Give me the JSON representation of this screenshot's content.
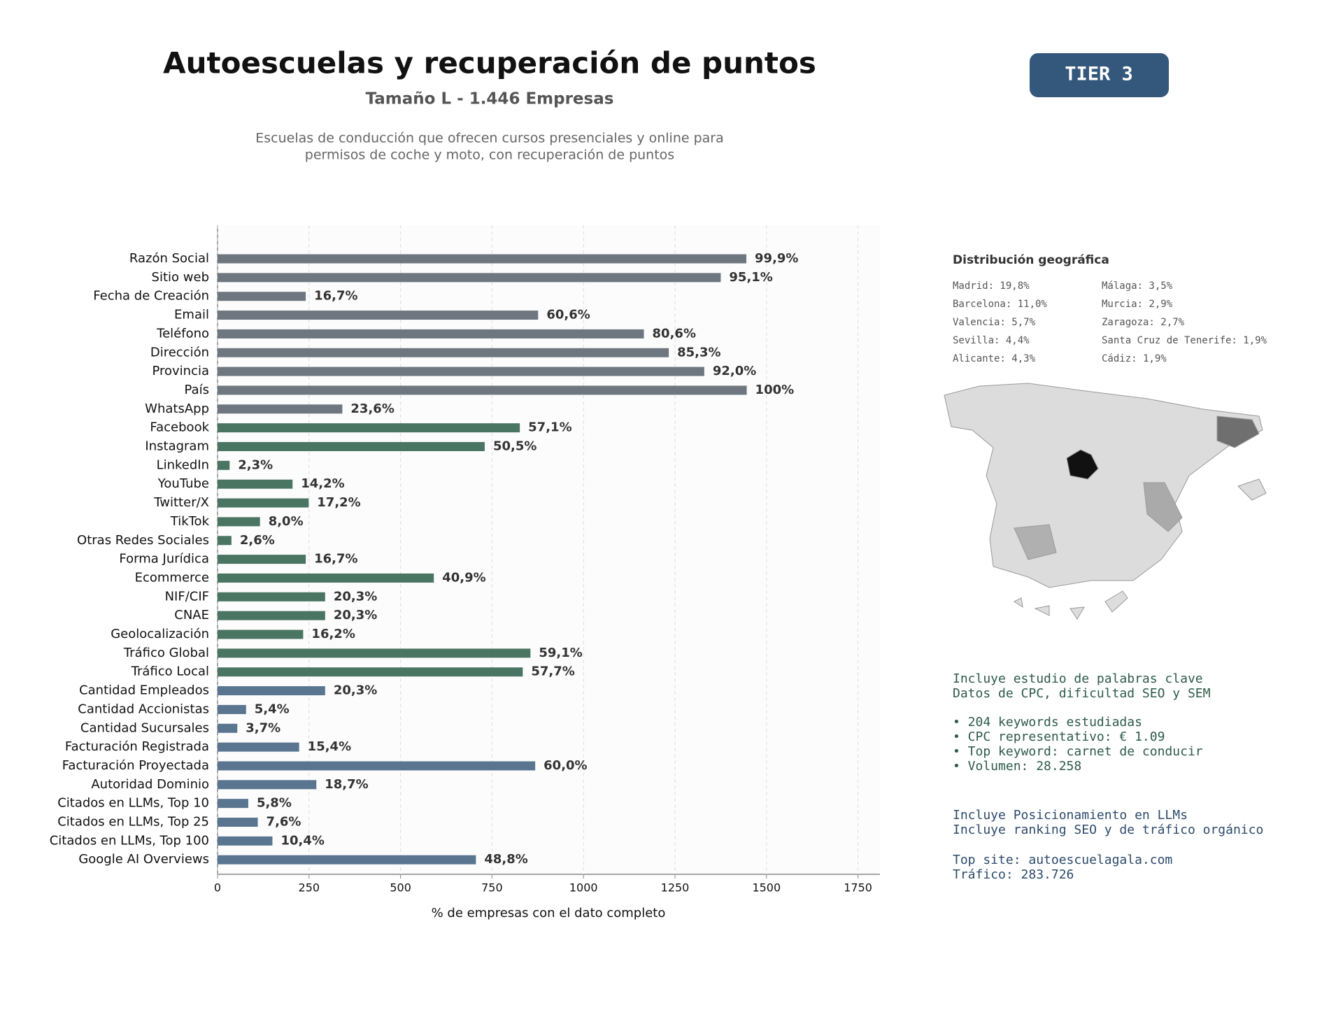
{
  "chart_data": {
    "type": "barh",
    "title": "Autoescuelas y recuperación de puntos",
    "subtitle": "Tamaño L - 1.446 Empresas",
    "description": [
      "Escuelas de conducción que ofrecen cursos presenciales y online para",
      "permisos de coche y moto, con recuperación de puntos"
    ],
    "badge": "TIER 3",
    "xlabel": "% de empresas con el dato completo",
    "categories": [
      "Razón Social",
      "Sitio web",
      "Fecha de Creación",
      "Email",
      "Teléfono",
      "Dirección",
      "Provincia",
      "País",
      "WhatsApp",
      "Facebook",
      "Instagram",
      "LinkedIn",
      "YouTube",
      "Twitter/X",
      "TikTok",
      "Otras Redes Sociales",
      "Forma Jurídica",
      "Ecommerce",
      "NIF/CIF",
      "CNAE",
      "Geolocalización",
      "Tráfico Global",
      "Tráfico Local",
      "Cantidad Empleados",
      "Cantidad Accionistas",
      "Cantidad Sucursales",
      "Facturación Registrada",
      "Facturación Proyectada",
      "Autoridad Dominio",
      "Citados en LLMs, Top 10",
      "Citados en LLMs, Top 25",
      "Citados en LLMs, Top 100",
      "Google AI Overviews"
    ],
    "values": [
      1445,
      1375,
      241,
      876,
      1165,
      1233,
      1330,
      1446,
      341,
      826,
      730,
      33,
      205,
      249,
      116,
      38,
      241,
      591,
      294,
      294,
      234,
      855,
      834,
      294,
      78,
      54,
      223,
      868,
      270,
      84,
      110,
      150,
      706
    ],
    "value_labels": [
      "99,9%",
      "95,1%",
      "16,7%",
      "60,6%",
      "80,6%",
      "85,3%",
      "92,0%",
      "100%",
      "23,6%",
      "57,1%",
      "50,5%",
      "2,3%",
      "14,2%",
      "17,2%",
      "8,0%",
      "2,6%",
      "16,7%",
      "40,9%",
      "20,3%",
      "20,3%",
      "16,2%",
      "59,1%",
      "57,7%",
      "20,3%",
      "5,4%",
      "3,7%",
      "15,4%",
      "60,0%",
      "18,7%",
      "5,8%",
      "7,6%",
      "10,4%",
      "48,8%"
    ],
    "colors": [
      "#6e7780",
      "#6e7780",
      "#6e7780",
      "#6e7780",
      "#6e7780",
      "#6e7780",
      "#6e7780",
      "#6e7780",
      "#6e7780",
      "#4a7563",
      "#4a7563",
      "#4a7563",
      "#4a7563",
      "#4a7563",
      "#4a7563",
      "#4a7563",
      "#4a7563",
      "#4a7563",
      "#4a7563",
      "#4a7563",
      "#4a7563",
      "#4a7563",
      "#4a7563",
      "#5a7590",
      "#5a7590",
      "#5a7590",
      "#5a7590",
      "#5a7590",
      "#5a7590",
      "#5a7590",
      "#5a7590",
      "#5a7590",
      "#5a7590"
    ],
    "xlim": [
      0,
      1810
    ],
    "xticks": [
      0,
      250,
      500,
      750,
      1000,
      1250,
      1500,
      1750
    ],
    "grid": true
  },
  "geo": {
    "title": "Distribución geográfica",
    "items": [
      "Madrid: 19,8%",
      "Barcelona: 11,0%",
      "Valencia: 5,7%",
      "Sevilla: 4,4%",
      "Alicante: 4,3%",
      "Málaga: 3,5%",
      "Murcia: 2,9%",
      "Zaragoza: 2,7%",
      "Santa Cruz de Tenerife: 1,9%",
      "Cádiz: 1,9%"
    ]
  },
  "keywords": {
    "intro": [
      "Incluye estudio de palabras clave",
      "Datos de CPC, dificultad SEO y SEM"
    ],
    "bullets": [
      "• 204 keywords estudiadas",
      "• CPC representativo: € 1.09",
      "• Top keyword: carnet de conducir",
      "• Volumen: 28.258"
    ]
  },
  "llm": {
    "intro": [
      "Incluye Posicionamiento en LLMs",
      "Incluye ranking SEO y de tráfico orgánico"
    ],
    "site": [
      "Top site: autoescuelagala.com",
      "Tráfico: 283.726"
    ]
  }
}
